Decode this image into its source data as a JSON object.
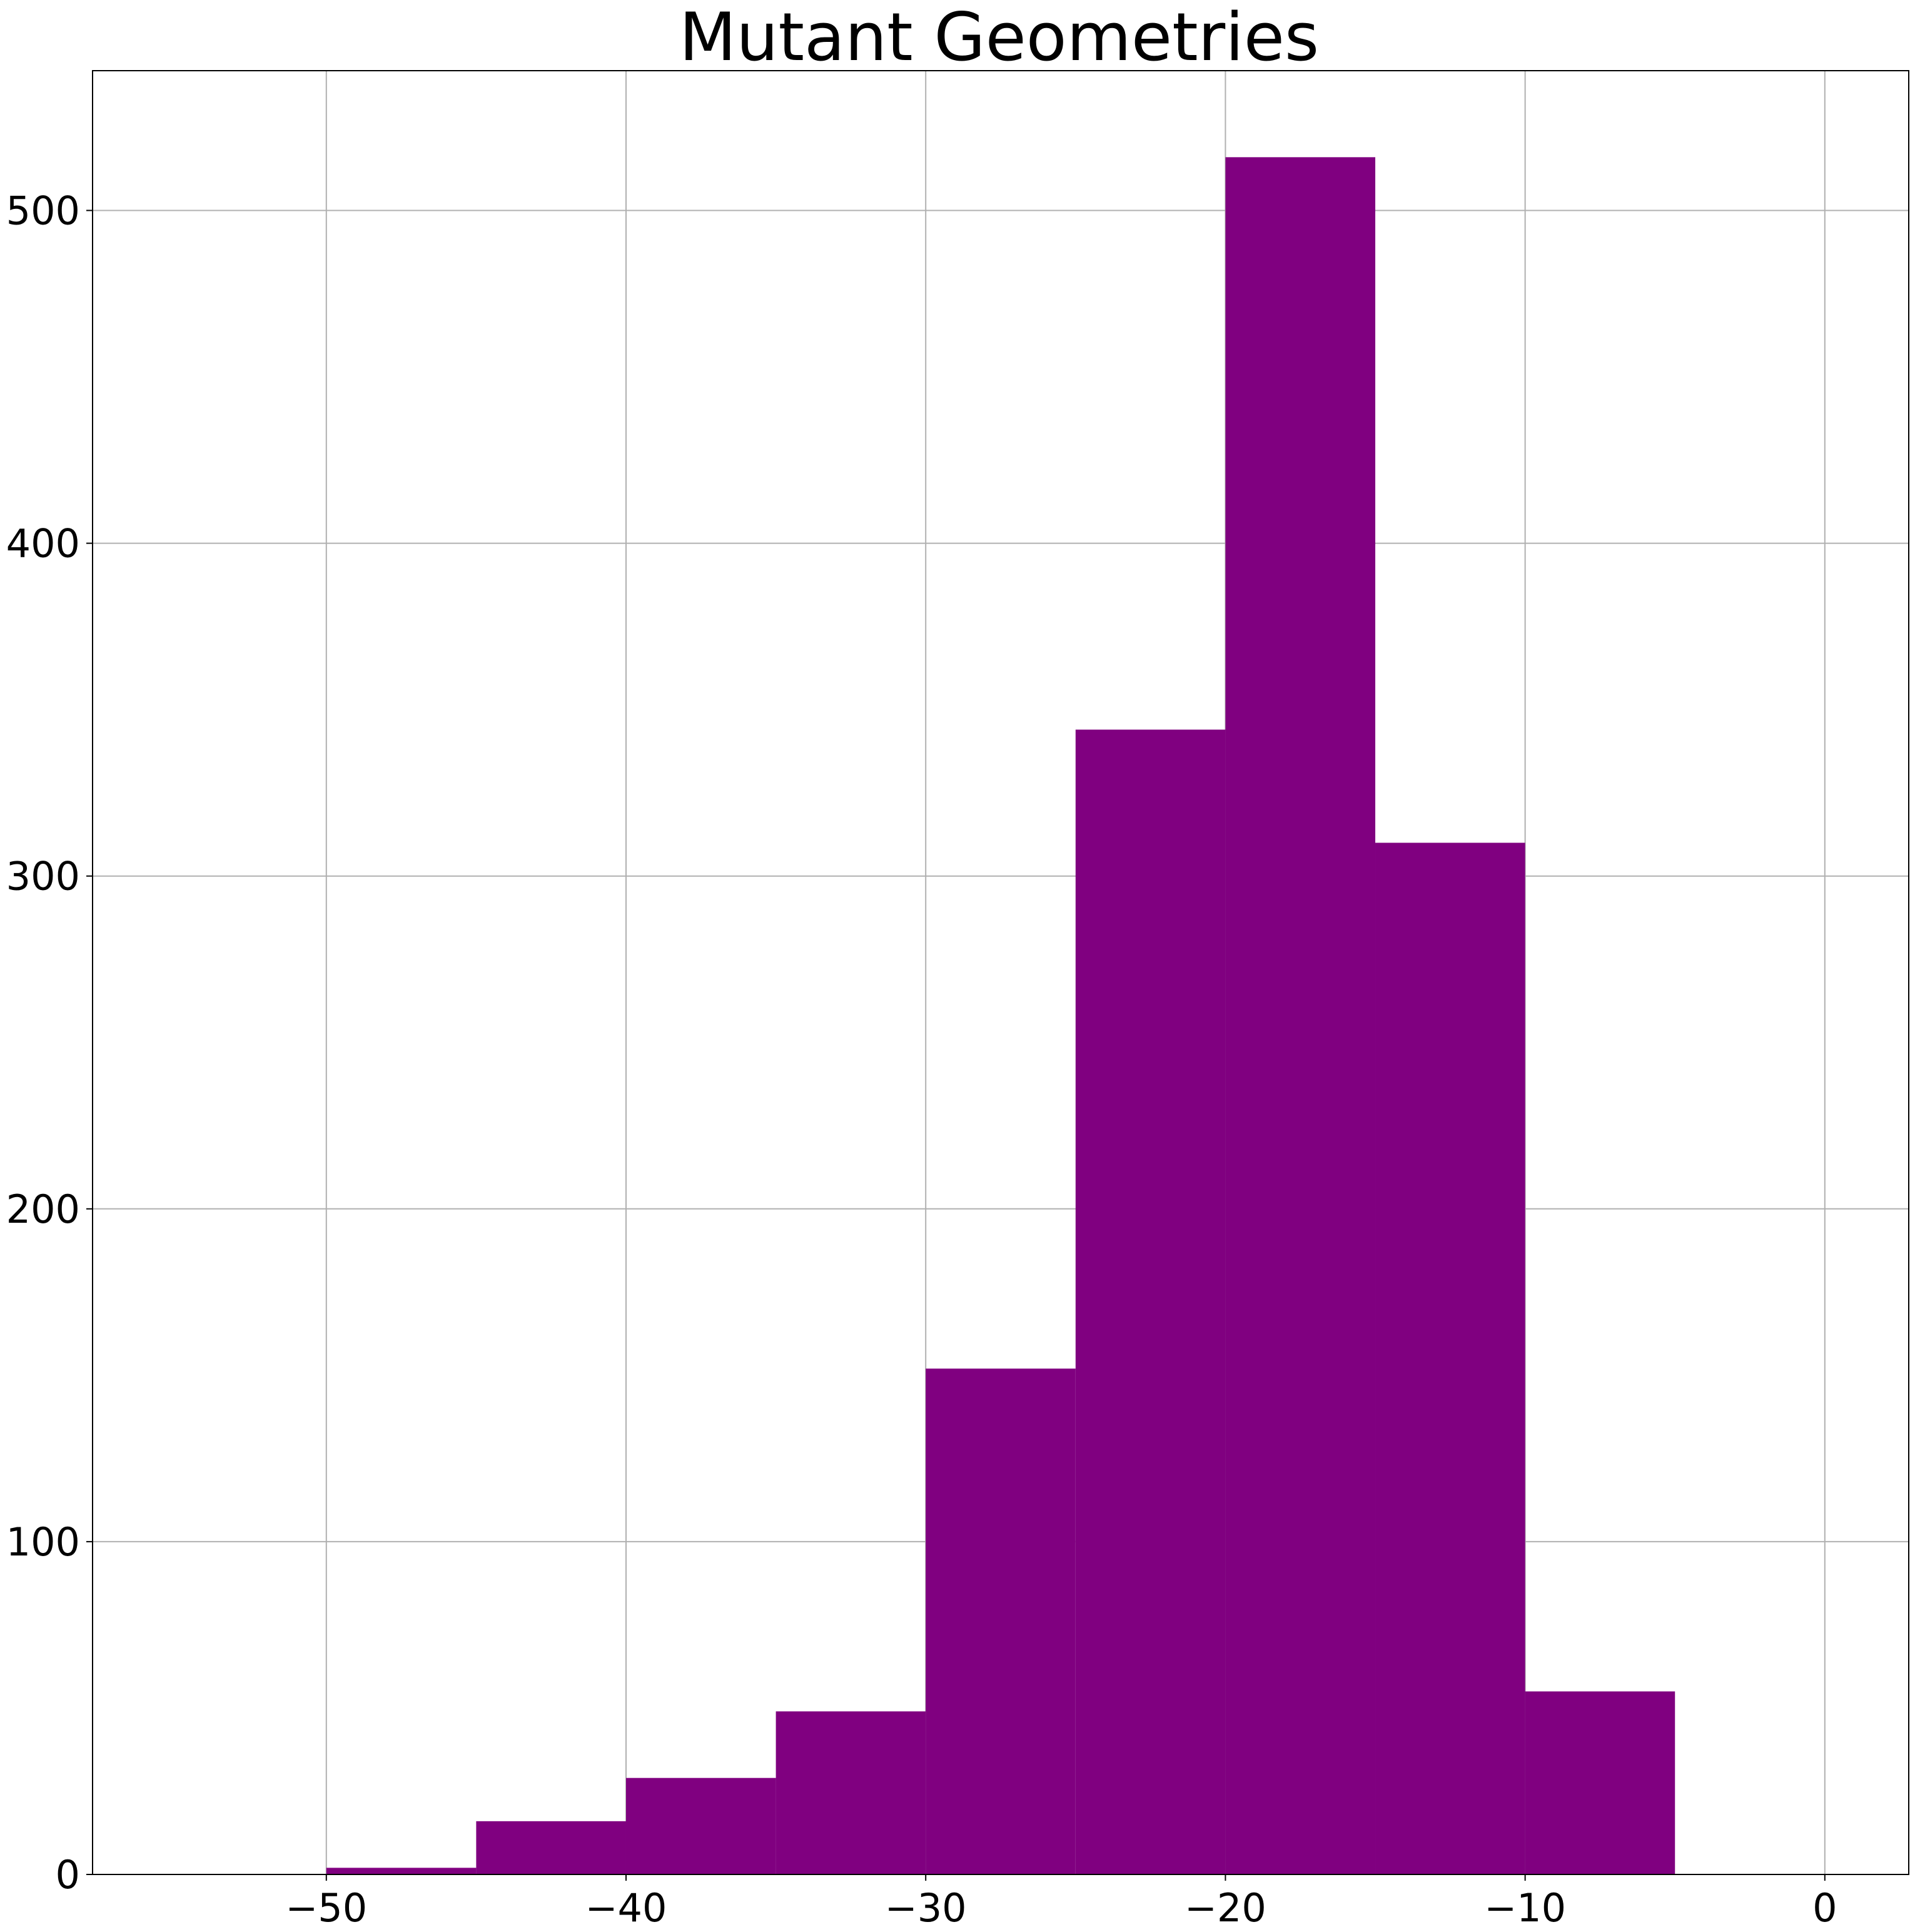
{
  "chart_data": {
    "type": "bar",
    "title": "Mutant Geometries",
    "xlabel": "",
    "ylabel": "",
    "bins": [
      {
        "x0": -50,
        "x1": -45,
        "count": 2
      },
      {
        "x0": -45,
        "x1": -40,
        "count": 16
      },
      {
        "x0": -40,
        "x1": -35,
        "count": 29
      },
      {
        "x0": -35,
        "x1": -30,
        "count": 49
      },
      {
        "x0": -30,
        "x1": -25,
        "count": 152
      },
      {
        "x0": -25,
        "x1": -20,
        "count": 344
      },
      {
        "x0": -20,
        "x1": -15,
        "count": 516
      },
      {
        "x0": -15,
        "x1": -10,
        "count": 310
      },
      {
        "x0": -10,
        "x1": -5,
        "count": 55
      }
    ],
    "xlim": [
      -57.8,
      2.8
    ],
    "ylim": [
      0,
      542
    ],
    "xticks": [
      {
        "value": -50,
        "label": "−50"
      },
      {
        "value": -40,
        "label": "−40"
      },
      {
        "value": -30,
        "label": "−30"
      },
      {
        "value": -20,
        "label": "−20"
      },
      {
        "value": -10,
        "label": "−10"
      },
      {
        "value": 0,
        "label": "0"
      }
    ],
    "yticks": [
      {
        "value": 0,
        "label": "0"
      },
      {
        "value": 100,
        "label": "100"
      },
      {
        "value": 200,
        "label": "200"
      },
      {
        "value": 300,
        "label": "300"
      },
      {
        "value": 400,
        "label": "400"
      },
      {
        "value": 500,
        "label": "500"
      }
    ],
    "grid": true,
    "colors": {
      "bar": "#800080",
      "grid": "#b0b0b0",
      "axis": "#000000"
    }
  }
}
